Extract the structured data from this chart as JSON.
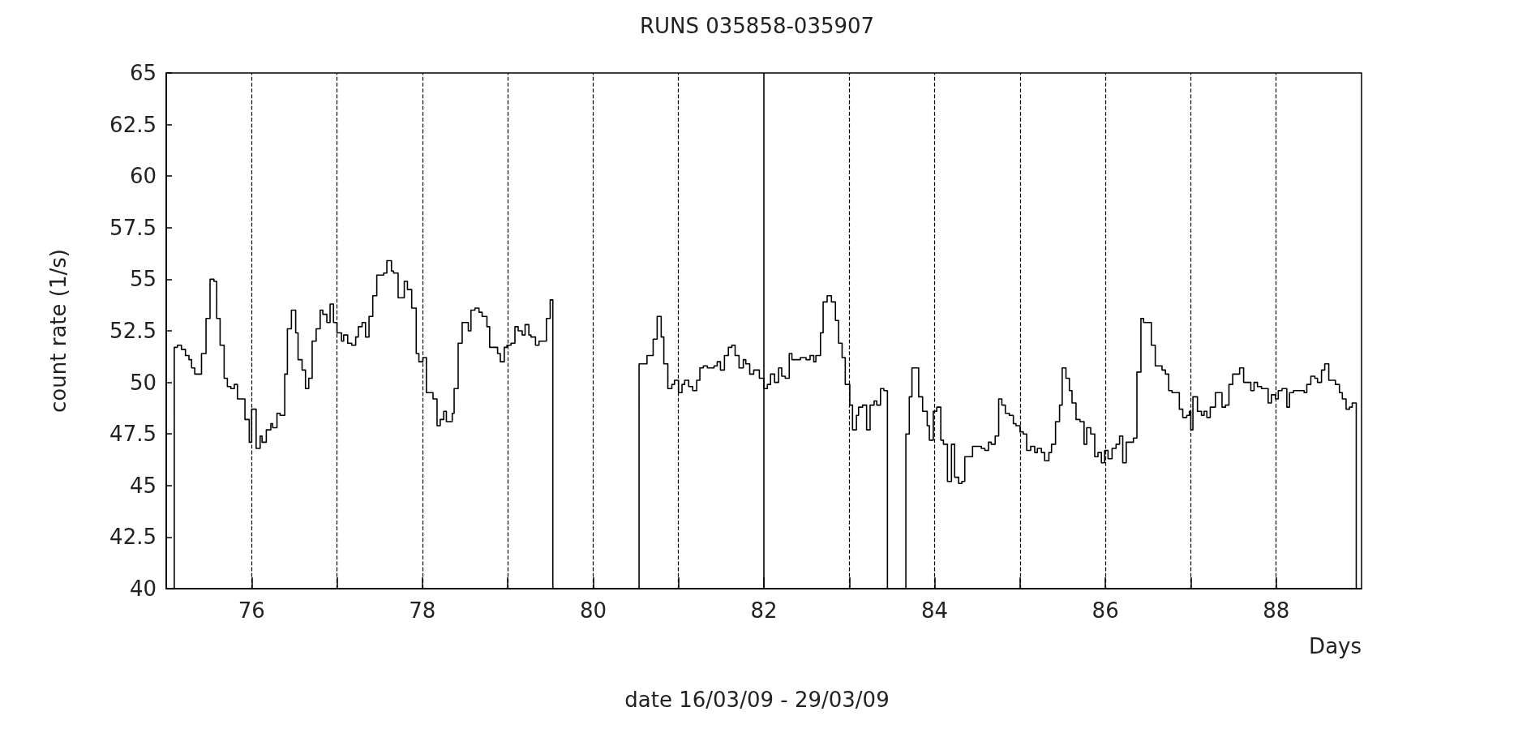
{
  "chart_data": {
    "type": "step",
    "title": "RUNS 035858-035907",
    "xlabel": "Days",
    "ylabel": "count rate (1/s)",
    "annotations": [
      "date 16/03/09 - 29/03/09"
    ],
    "color": "#000000",
    "marker": "none",
    "x": [
      75,
      75.094,
      75.131,
      75.178,
      75.225,
      75.266,
      75.297,
      75.334,
      75.413,
      75.466,
      75.513,
      75.559,
      75.591,
      75.631,
      75.678,
      75.716,
      75.756,
      75.797,
      75.834,
      75.922,
      75.972,
      76.0,
      76.053,
      76.1,
      76.122,
      76.172,
      76.225,
      76.247,
      76.297,
      76.334,
      76.388,
      76.419,
      76.466,
      76.516,
      76.544,
      76.591,
      76.631,
      76.669,
      76.709,
      76.756,
      76.803,
      76.834,
      76.881,
      76.919,
      76.959,
      77.0,
      77.053,
      77.078,
      77.125,
      77.172,
      77.219,
      77.25,
      77.294,
      77.334,
      77.375,
      77.419,
      77.466,
      77.506,
      77.547,
      77.584,
      77.638,
      77.663,
      77.716,
      77.788,
      77.825,
      77.875,
      77.928,
      77.959,
      78.006,
      78.047,
      78.125,
      78.172,
      78.209,
      78.25,
      78.281,
      78.35,
      78.372,
      78.419,
      78.466,
      78.538,
      78.569,
      78.616,
      78.663,
      78.7,
      78.756,
      78.788,
      78.841,
      78.881,
      78.913,
      78.959,
      78.991,
      79.038,
      79.084,
      79.122,
      79.169,
      79.203,
      79.247,
      79.272,
      79.325,
      79.366,
      79.453,
      79.497,
      79.528,
      80.538,
      80.631,
      80.703,
      80.75,
      80.797,
      80.828,
      80.875,
      80.922,
      80.953,
      81.0,
      81.041,
      81.072,
      81.119,
      81.166,
      81.213,
      81.25,
      81.291,
      81.338,
      81.416,
      81.453,
      81.491,
      81.538,
      81.584,
      81.625,
      81.663,
      81.709,
      81.759,
      81.788,
      81.834,
      81.881,
      81.947,
      82.0,
      82.041,
      82.078,
      82.125,
      82.172,
      82.209,
      82.25,
      82.297,
      82.328,
      82.375,
      82.428,
      82.494,
      82.541,
      82.584,
      82.609,
      82.663,
      82.694,
      82.741,
      82.791,
      82.838,
      82.875,
      82.916,
      82.953,
      83.006,
      83.038,
      83.084,
      83.109,
      83.156,
      83.203,
      83.244,
      83.291,
      83.322,
      83.366,
      83.406,
      83.447,
      83.663,
      83.703,
      83.734,
      83.813,
      83.859,
      83.913,
      83.938,
      83.984,
      84.025,
      84.072,
      84.103,
      84.15,
      84.197,
      84.234,
      84.281,
      84.319,
      84.353,
      84.444,
      84.547,
      84.588,
      84.631,
      84.663,
      84.709,
      84.75,
      84.787,
      84.828,
      84.875,
      84.922,
      84.953,
      85.0,
      85.038,
      85.078,
      85.125,
      85.172,
      85.203,
      85.25,
      85.288,
      85.338,
      85.369,
      85.416,
      85.463,
      85.494,
      85.538,
      85.578,
      85.609,
      85.656,
      85.703,
      85.75,
      85.781,
      85.828,
      85.875,
      85.913,
      85.953,
      85.991,
      86.031,
      86.078,
      86.125,
      86.166,
      86.203,
      86.244,
      86.328,
      86.369,
      86.416,
      86.447,
      86.538,
      86.584,
      86.663,
      86.703,
      86.741,
      86.781,
      86.866,
      86.906,
      86.953,
      86.984,
      87.0,
      87.025,
      87.078,
      87.125,
      87.156,
      87.188,
      87.228,
      87.288,
      87.366,
      87.406,
      87.447,
      87.491,
      87.572,
      87.619,
      87.703,
      87.741,
      87.781,
      87.828,
      87.906,
      87.944,
      87.991,
      88.025,
      88.069,
      88.125,
      88.156,
      88.203,
      88.328,
      88.359,
      88.406,
      88.453,
      88.484,
      88.531,
      88.569,
      88.616,
      88.694,
      88.741,
      88.775,
      88.819,
      88.859,
      88.891,
      88.938,
      89
    ],
    "values": [
      40,
      51.7,
      51.8,
      51.6,
      51.3,
      51.1,
      50.7,
      50.4,
      51.4,
      53.1,
      55.0,
      54.9,
      53.1,
      51.8,
      50.2,
      49.8,
      49.7,
      49.9,
      49.2,
      48.2,
      47.1,
      48.7,
      46.8,
      47.4,
      47.1,
      47.7,
      48.0,
      47.8,
      48.5,
      48.4,
      50.4,
      52.6,
      53.5,
      52.4,
      51.1,
      50.6,
      49.7,
      50.2,
      52.0,
      52.6,
      53.5,
      53.3,
      52.9,
      53.8,
      52.9,
      52.4,
      52.0,
      52.3,
      51.9,
      51.8,
      52.2,
      52.7,
      52.9,
      52.2,
      53.2,
      54.2,
      55.2,
      55.2,
      55.3,
      55.9,
      55.4,
      55.3,
      54.1,
      54.9,
      54.5,
      53.6,
      51.4,
      51.0,
      51.2,
      49.5,
      49.2,
      47.9,
      48.2,
      48.6,
      48.1,
      48.5,
      49.7,
      51.9,
      52.9,
      52.5,
      53.5,
      53.6,
      53.4,
      53.2,
      52.7,
      51.7,
      51.7,
      51.4,
      51.0,
      51.7,
      51.8,
      51.9,
      52.7,
      52.5,
      52.3,
      52.8,
      52.3,
      52.2,
      51.8,
      52.0,
      53.1,
      54.0,
      40,
      50.9,
      51.3,
      52.1,
      53.2,
      52.2,
      50.9,
      49.7,
      49.9,
      50.1,
      49.5,
      49.9,
      50.1,
      49.8,
      49.6,
      50.1,
      50.7,
      50.8,
      50.7,
      50.8,
      51.0,
      50.6,
      51.3,
      51.7,
      51.8,
      51.3,
      50.7,
      51.1,
      50.9,
      50.4,
      50.6,
      50.2,
      49.7,
      49.9,
      50.4,
      50.0,
      50.7,
      50.3,
      50.2,
      51.4,
      51.1,
      51.1,
      51.2,
      51.1,
      51.3,
      51.0,
      51.3,
      52.4,
      53.9,
      54.2,
      53.9,
      53.0,
      51.9,
      51.2,
      49.9,
      48.9,
      47.7,
      48.4,
      48.8,
      48.9,
      47.7,
      48.9,
      49.1,
      48.9,
      49.7,
      49.6,
      40,
      47.5,
      49.3,
      50.7,
      49.3,
      48.6,
      47.9,
      47.2,
      48.6,
      48.8,
      47.2,
      47.0,
      45.2,
      47.0,
      45.4,
      45.1,
      45.2,
      46.4,
      46.9,
      46.8,
      46.7,
      47.1,
      47.0,
      47.4,
      49.2,
      48.9,
      48.5,
      48.4,
      48.0,
      47.9,
      47.6,
      47.5,
      46.7,
      46.9,
      46.6,
      46.8,
      46.6,
      46.2,
      46.6,
      47.0,
      48.1,
      48.9,
      50.7,
      50.2,
      49.6,
      49.0,
      48.2,
      48.1,
      47.0,
      47.8,
      47.5,
      46.4,
      46.6,
      46.1,
      46.7,
      46.3,
      46.8,
      47.0,
      47.4,
      46.1,
      47.1,
      47.3,
      50.5,
      53.1,
      52.9,
      51.8,
      50.8,
      50.6,
      50.4,
      49.6,
      49.5,
      48.7,
      48.3,
      48.4,
      48.6,
      47.7,
      49.3,
      48.6,
      48.4,
      48.6,
      48.3,
      48.8,
      49.5,
      48.8,
      48.9,
      49.9,
      50.4,
      50.7,
      50.0,
      49.6,
      50.0,
      49.8,
      49.7,
      49.0,
      49.4,
      49.2,
      49.6,
      49.7,
      48.8,
      49.5,
      49.6,
      49.5,
      49.9,
      50.3,
      50.2,
      50.0,
      50.6,
      50.9,
      50.1,
      49.9,
      49.5,
      49.2,
      48.7,
      48.8,
      49.0,
      40,
      40
    ],
    "xlim": [
      75,
      89
    ],
    "xticks": [
      76,
      {
        "value": 77,
        "label": null
      },
      78,
      {
        "value": 79,
        "label": null
      },
      80,
      {
        "value": 81,
        "label": null
      },
      82,
      {
        "value": 83,
        "label": null
      },
      84,
      {
        "value": 85,
        "label": null
      },
      86,
      {
        "value": 87,
        "label": null
      },
      88
    ],
    "ylim": [
      40,
      65
    ],
    "yticks": [
      40,
      42.5,
      45,
      47.5,
      50,
      52.5,
      55,
      57.5,
      60,
      62.5,
      65
    ],
    "ref_lines": [
      {
        "axis": "x",
        "value": 76,
        "line_style": "dashed",
        "color": "#000000"
      },
      {
        "axis": "x",
        "value": 77,
        "line_style": "dashed",
        "color": "#000000"
      },
      {
        "axis": "x",
        "value": 78,
        "line_style": "dashed",
        "color": "#000000"
      },
      {
        "axis": "x",
        "value": 79,
        "line_style": "dashed",
        "color": "#000000"
      },
      {
        "axis": "x",
        "value": 80,
        "line_style": "dashed",
        "color": "#000000"
      },
      {
        "axis": "x",
        "value": 81,
        "line_style": "dashed",
        "color": "#000000"
      },
      {
        "axis": "x",
        "value": 82,
        "line_style": "solid",
        "color": "#000000"
      },
      {
        "axis": "x",
        "value": 83,
        "line_style": "dashed",
        "color": "#000000"
      },
      {
        "axis": "x",
        "value": 84,
        "line_style": "dashed",
        "color": "#000000"
      },
      {
        "axis": "x",
        "value": 85,
        "line_style": "dashed",
        "color": "#000000"
      },
      {
        "axis": "x",
        "value": 86,
        "line_style": "dashed",
        "color": "#000000"
      },
      {
        "axis": "x",
        "value": 87,
        "line_style": "dashed",
        "color": "#000000"
      },
      {
        "axis": "x",
        "value": 88,
        "line_style": "dashed",
        "color": "#000000"
      }
    ]
  }
}
